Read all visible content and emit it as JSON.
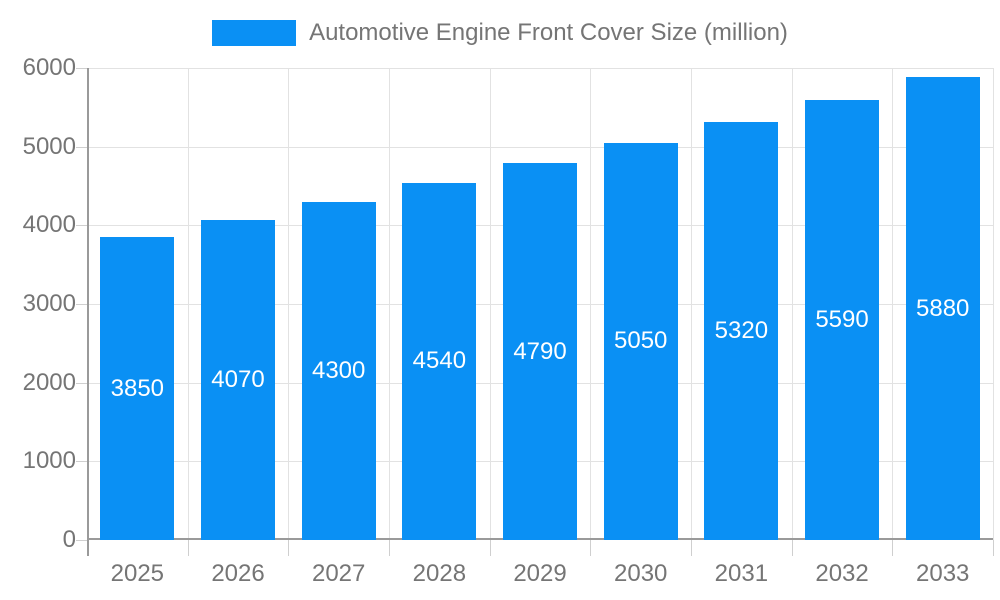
{
  "chart_data": {
    "type": "bar",
    "title": "Automotive Engine Front Cover Size (million)",
    "categories": [
      "2025",
      "2026",
      "2027",
      "2028",
      "2029",
      "2030",
      "2031",
      "2032",
      "2033"
    ],
    "values": [
      3850,
      4070,
      4300,
      4540,
      4790,
      5050,
      5320,
      5590,
      5880
    ],
    "xlabel": "",
    "ylabel": "",
    "ylim": [
      0,
      6000
    ],
    "yticks": [
      0,
      1000,
      2000,
      3000,
      4000,
      5000,
      6000
    ],
    "grid": true,
    "legend_position": "top-center",
    "legend_entries": [
      "Automotive Engine Front Cover Size (million)"
    ],
    "value_labels_shown": true,
    "colors": {
      "bar": "#0a90f4",
      "axis_text": "#757575",
      "value_label": "#ffffff",
      "grid_line": "#e2e2e2",
      "axis_line": "#9a9a9a",
      "tick_line": "#cfcfcf",
      "background": "#ffffff"
    }
  }
}
